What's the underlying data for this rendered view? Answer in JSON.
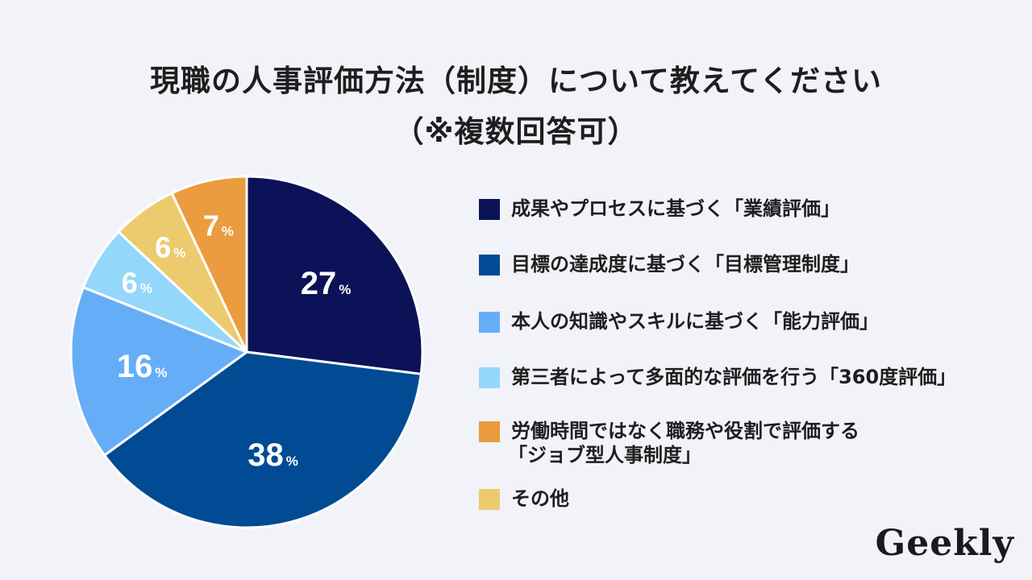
{
  "title_line1": "現職の人事評価方法（制度）について教えてください",
  "title_line2": "（※複数回答可）",
  "logo": "Geekly",
  "chart_data": {
    "type": "pie",
    "unit": "%",
    "slices": [
      {
        "name": "成果やプロセスに基づく「業績評価」",
        "value": 27,
        "color": "#0c1257"
      },
      {
        "name": "目標の達成度に基づく「目標管理制度」",
        "value": 38,
        "color": "#004b93"
      },
      {
        "name": "本人の知識やスキルに基づく「能力評価」",
        "value": 16,
        "color": "#66adf8"
      },
      {
        "name": "第三者によって多面的な評価を行う「360度評価」",
        "value": 6,
        "color": "#94d7fb"
      },
      {
        "name": "その他",
        "value": 6,
        "color": "#ebcb6e"
      },
      {
        "name": "労働時間ではなく職務や役割で評価する「ジョブ型人事制度」",
        "value": 7,
        "color": "#eb9c3e"
      }
    ],
    "legend": [
      {
        "lines": [
          "成果やプロセスに基づく「業績評価」"
        ],
        "color": "#0c1257"
      },
      {
        "lines": [
          "目標の達成度に基づく「目標管理制度」"
        ],
        "color": "#004b93"
      },
      {
        "lines": [
          "本人の知識やスキルに基づく「能力評価」"
        ],
        "color": "#66adf8"
      },
      {
        "lines": [
          "第三者によって多面的な評価を行う「360度評価」"
        ],
        "color": "#94d7fb"
      },
      {
        "lines": [
          "労働時間ではなく職務や役割で評価する",
          "「ジョブ型人事制度」"
        ],
        "color": "#eb9c3e"
      },
      {
        "lines": [
          "その他"
        ],
        "color": "#ebcb6e"
      }
    ],
    "legend_placement": "right"
  }
}
